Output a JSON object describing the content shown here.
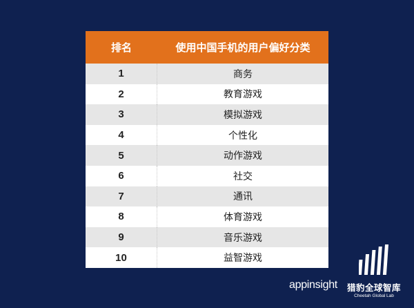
{
  "table": {
    "headers": [
      "排名",
      "使用中国手机的用户偏好分类"
    ],
    "rows": [
      {
        "rank": "1",
        "category": "商务"
      },
      {
        "rank": "2",
        "category": "教育游戏"
      },
      {
        "rank": "3",
        "category": "模拟游戏"
      },
      {
        "rank": "4",
        "category": "个性化"
      },
      {
        "rank": "5",
        "category": "动作游戏"
      },
      {
        "rank": "6",
        "category": "社交"
      },
      {
        "rank": "7",
        "category": "通讯"
      },
      {
        "rank": "8",
        "category": "体育游戏"
      },
      {
        "rank": "9",
        "category": "音乐游戏"
      },
      {
        "rank": "10",
        "category": "益智游戏"
      }
    ]
  },
  "logos": {
    "appinsight": "appinsight",
    "cheetah_zh": "猎豹全球智库",
    "cheetah_en": "Cheetah Global Lab"
  },
  "colors": {
    "background": "#0f2150",
    "header": "#e2711c",
    "row_alt": "#e6e6e6"
  }
}
